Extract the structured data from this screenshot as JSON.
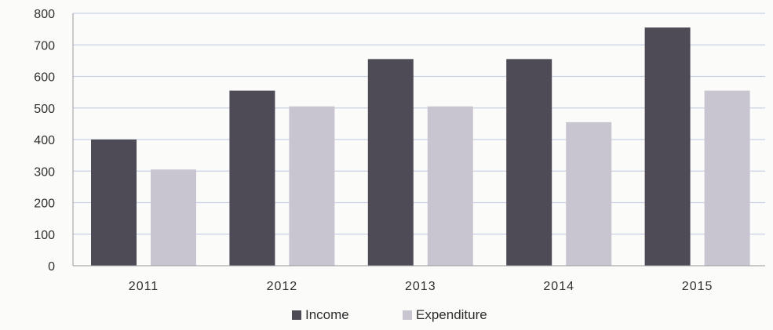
{
  "chart_data": {
    "type": "bar",
    "title": "",
    "xlabel": "",
    "ylabel": "",
    "categories": [
      "2011",
      "2012",
      "2013",
      "2014",
      "2015"
    ],
    "series": [
      {
        "name": "Income",
        "values": [
          400,
          555,
          655,
          655,
          755
        ],
        "color": "#4e4a56"
      },
      {
        "name": "Expenditure",
        "values": [
          305,
          505,
          505,
          455,
          555
        ],
        "color": "#c9c5d0"
      }
    ],
    "ylim": [
      0,
      800
    ],
    "yticks": [
      0,
      100,
      200,
      300,
      400,
      500,
      600,
      700,
      800
    ],
    "grid": true,
    "legend_position": "bottom-center",
    "colors": {
      "grid": "#c9d1e6",
      "axis": "#9a9a9a",
      "text": "#2f2f2f"
    }
  }
}
